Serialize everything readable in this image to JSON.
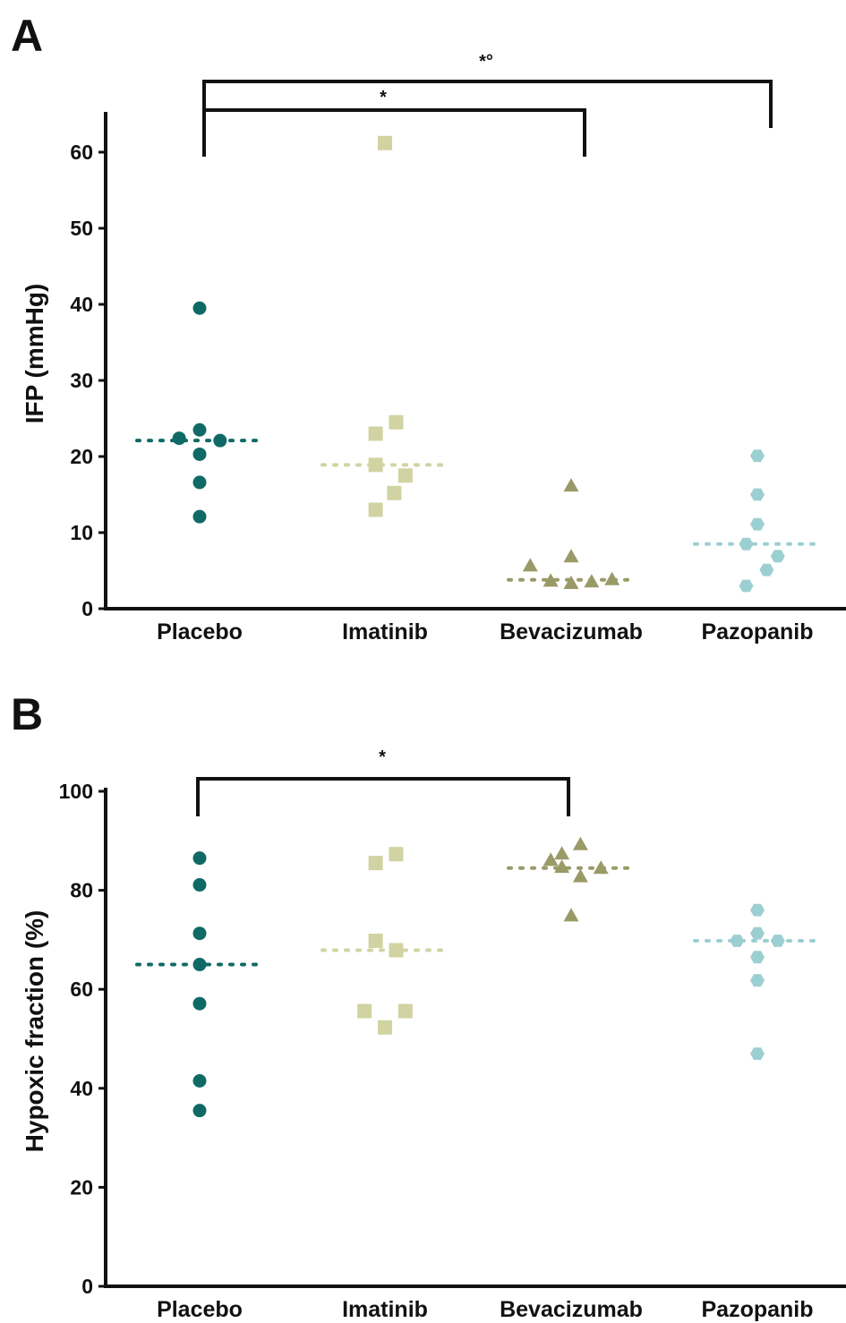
{
  "colors": {
    "Placebo": "#0f6a66",
    "Imatinib": "#d1d3a2",
    "Bevacizumab": "#9a9a68",
    "Pazopanib": "#9ccfd2",
    "axis": "#111111"
  },
  "chart_data": [
    {
      "panel": "A",
      "type": "scatter",
      "ylabel": "IFP (mmHg)",
      "ylim": [
        0,
        65
      ],
      "yticks": [
        0,
        10,
        20,
        30,
        40,
        50,
        60
      ],
      "categories": [
        "Placebo",
        "Imatinib",
        "Bevacizumab",
        "Pazopanib"
      ],
      "series": [
        {
          "name": "Placebo",
          "marker": "circle",
          "mean": 22.1,
          "points": [
            [
              0,
              39.5
            ],
            [
              0,
              23.5
            ],
            [
              -0.11,
              22.4
            ],
            [
              0.11,
              22.1
            ],
            [
              0,
              20.3
            ],
            [
              0,
              16.6
            ],
            [
              0,
              12.1
            ]
          ]
        },
        {
          "name": "Imatinib",
          "marker": "square",
          "mean": 18.9,
          "points": [
            [
              0,
              61.2
            ],
            [
              0.06,
              24.5
            ],
            [
              -0.05,
              23.0
            ],
            [
              -0.05,
              18.9
            ],
            [
              0.11,
              17.5
            ],
            [
              0.05,
              15.2
            ],
            [
              -0.05,
              13.0
            ]
          ]
        },
        {
          "name": "Bevacizumab",
          "marker": "triangle",
          "mean": 3.8,
          "points": [
            [
              0,
              16.1
            ],
            [
              0,
              6.8
            ],
            [
              -0.22,
              5.6
            ],
            [
              -0.11,
              3.6
            ],
            [
              0,
              3.3
            ],
            [
              0.11,
              3.5
            ],
            [
              0.22,
              3.8
            ]
          ]
        },
        {
          "name": "Pazopanib",
          "marker": "hexagon",
          "mean": 8.5,
          "points": [
            [
              0,
              20.1
            ],
            [
              0,
              15.0
            ],
            [
              0,
              11.1
            ],
            [
              -0.06,
              8.5
            ],
            [
              0.11,
              6.9
            ],
            [
              0.05,
              5.1
            ],
            [
              -0.06,
              3.0
            ]
          ]
        }
      ],
      "significance": [
        {
          "from": "Placebo",
          "to": "Bevacizumab",
          "label": "*"
        },
        {
          "from": "Placebo",
          "to": "Pazopanib",
          "label": "*°"
        }
      ]
    },
    {
      "panel": "B",
      "type": "scatter",
      "ylabel": "Hypoxic fraction (%)",
      "ylim": [
        0,
        100
      ],
      "yticks": [
        0,
        20,
        40,
        60,
        80,
        100
      ],
      "categories": [
        "Placebo",
        "Imatinib",
        "Bevacizumab",
        "Pazopanib"
      ],
      "series": [
        {
          "name": "Placebo",
          "marker": "circle",
          "mean": 65.0,
          "points": [
            [
              0,
              86.5
            ],
            [
              0,
              81.1
            ],
            [
              0,
              71.3
            ],
            [
              0,
              65.0
            ],
            [
              0,
              57.1
            ],
            [
              0,
              41.5
            ],
            [
              0,
              35.5
            ]
          ]
        },
        {
          "name": "Imatinib",
          "marker": "square",
          "mean": 67.9,
          "points": [
            [
              -0.05,
              85.5
            ],
            [
              0.06,
              87.3
            ],
            [
              -0.05,
              69.8
            ],
            [
              0.06,
              67.9
            ],
            [
              -0.11,
              55.6
            ],
            [
              0.11,
              55.6
            ],
            [
              0,
              52.3
            ]
          ]
        },
        {
          "name": "Bevacizumab",
          "marker": "triangle",
          "mean": 84.5,
          "points": [
            [
              0.05,
              89.2
            ],
            [
              -0.11,
              86.0
            ],
            [
              -0.05,
              87.3
            ],
            [
              -0.05,
              84.6
            ],
            [
              0.05,
              82.7
            ],
            [
              0.16,
              84.4
            ],
            [
              0,
              74.8
            ]
          ]
        },
        {
          "name": "Pazopanib",
          "marker": "hexagon",
          "mean": 69.8,
          "points": [
            [
              0,
              76.0
            ],
            [
              0,
              71.3
            ],
            [
              -0.11,
              69.8
            ],
            [
              0.11,
              69.8
            ],
            [
              0,
              66.5
            ],
            [
              0,
              61.8
            ],
            [
              0,
              47.0
            ]
          ]
        }
      ],
      "significance": [
        {
          "from": "Placebo",
          "to": "Bevacizumab",
          "label": "*"
        }
      ]
    }
  ]
}
